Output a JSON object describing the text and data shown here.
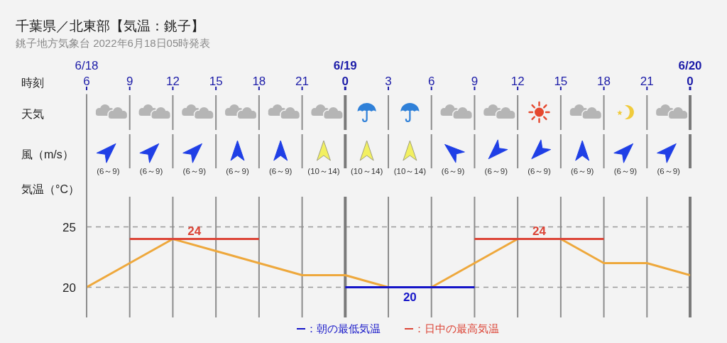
{
  "chart_data": {
    "type": "line",
    "title": "千葉県／北東部【気温：銚子】",
    "subtitle": "銚子地方気象台 2022年6月18日05時発表",
    "xlabel": "時刻",
    "ylabel": "気温（°C）",
    "x": [
      "2022-06-18T06:00",
      "2022-06-18T09:00",
      "2022-06-18T12:00",
      "2022-06-18T15:00",
      "2022-06-18T18:00",
      "2022-06-18T21:00",
      "2022-06-19T00:00",
      "2022-06-19T03:00",
      "2022-06-19T06:00",
      "2022-06-19T09:00",
      "2022-06-19T12:00",
      "2022-06-19T15:00",
      "2022-06-19T18:00",
      "2022-06-19T21:00",
      "2022-06-20T00:00"
    ],
    "series": [
      {
        "color": "#eea83c",
        "values": [
          20,
          22,
          24,
          23,
          22,
          21,
          21,
          20,
          20,
          22,
          24,
          24,
          22,
          22,
          21
        ]
      },
      {
        "name": "：朝の最低気温",
        "color": "#1414c8",
        "x": [
          "2022-06-19T00:00",
          "2022-06-19T09:00"
        ],
        "values": [
          20,
          20
        ]
      },
      {
        "name": "：日中の最高気温",
        "color": "#dc4436",
        "x": [
          "2022-06-18T09:00",
          "2022-06-18T18:00",
          "2022-06-19T06:00",
          "2022-06-19T09:00",
          "2022-06-19T18:00"
        ],
        "values": [
          24,
          24,
          null,
          24,
          24
        ]
      }
    ],
    "xlim": [
      "2022-06-18T06:00",
      "2022-06-20T00:00"
    ],
    "xticks": [
      {
        "value": "2022-06-18T06:00",
        "label": "6"
      },
      {
        "value": "2022-06-18T09:00",
        "label": "9"
      },
      {
        "value": "2022-06-18T12:00",
        "label": "12"
      },
      {
        "value": "2022-06-18T15:00",
        "label": "15"
      },
      {
        "value": "2022-06-18T18:00",
        "label": "18"
      },
      {
        "value": "2022-06-18T21:00",
        "label": "21"
      },
      {
        "value": "2022-06-19T00:00",
        "label": "0"
      },
      {
        "value": "2022-06-19T03:00",
        "label": "3"
      },
      {
        "value": "2022-06-19T06:00",
        "label": "6"
      },
      {
        "value": "2022-06-19T09:00",
        "label": "9"
      },
      {
        "value": "2022-06-19T12:00",
        "label": "12"
      },
      {
        "value": "2022-06-19T15:00",
        "label": "15"
      },
      {
        "value": "2022-06-19T18:00",
        "label": "18"
      },
      {
        "value": "2022-06-19T21:00",
        "label": "21"
      },
      {
        "value": "2022-06-20T00:00",
        "label": "0"
      }
    ],
    "ylim": [
      17.5,
      36
    ],
    "yticks": [
      20,
      25
    ],
    "grid": true,
    "legend": "bottom",
    "marker": "none",
    "line_style": "solid",
    "annotations": [
      "6/18",
      "6/19",
      "6/20",
      "天気",
      "風（m/s）",
      "(6～9)",
      "(6～9)",
      "(6～9)",
      "(6～9)",
      "(6～9)",
      "(10～14)",
      "(10～14)",
      "(10～14)",
      "(6～9)",
      "(6～9)",
      "(6～9)",
      "(6～9)",
      "(6～9)",
      "(6～9)",
      {
        "text": "24",
        "x": "2022-06-18T13:30",
        "y": 24
      },
      {
        "text": "20",
        "x": "2022-06-19T04:30",
        "y": 20
      },
      {
        "text": "24",
        "x": "2022-06-19T13:30",
        "y": 24
      }
    ]
  }
}
